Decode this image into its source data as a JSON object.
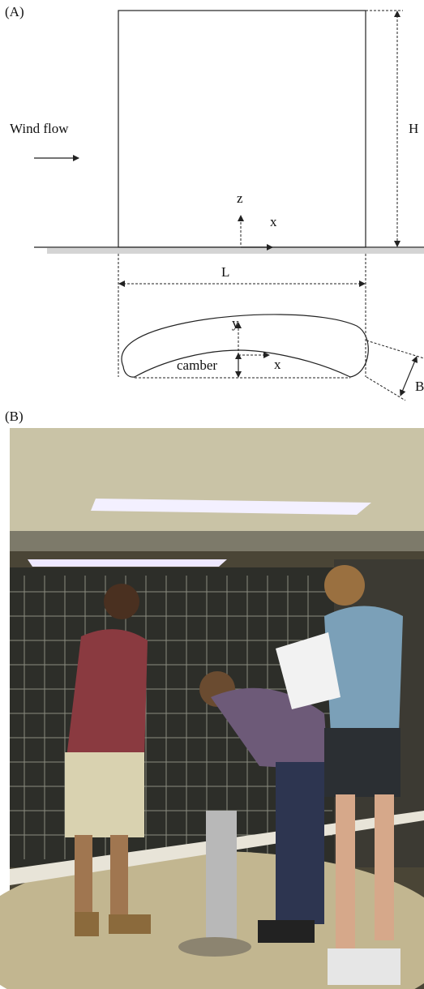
{
  "panel_a": {
    "label": "(A)",
    "wind_label": "Wind flow",
    "height_label": "H",
    "z_label": "z",
    "x_label": "x",
    "length_label": "L",
    "y_label": "y",
    "camber_label": "camber",
    "x_label_plan": "x",
    "breadth_label": "B"
  },
  "panel_b": {
    "label": "(B)"
  }
}
